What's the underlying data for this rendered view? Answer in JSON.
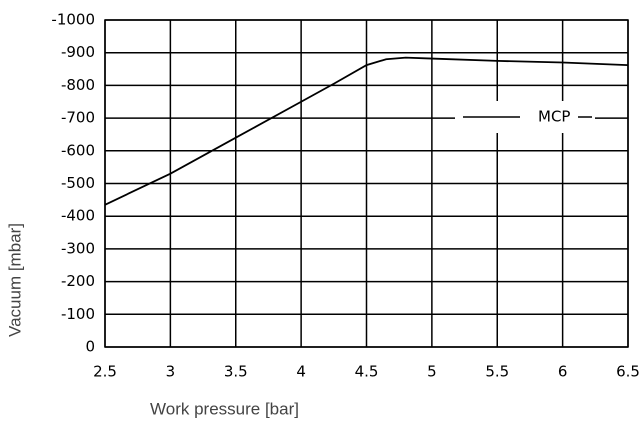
{
  "chart_data": {
    "type": "line",
    "xlabel": "Work pressure [bar]",
    "ylabel": "Vacuum [mbar]",
    "x": [
      2.5,
      3,
      3.5,
      4,
      4.25,
      4.5,
      4.65,
      4.8,
      5,
      5.5,
      6,
      6.5
    ],
    "series": [
      {
        "name": "MCP",
        "color": "#000000",
        "values": [
          -435,
          -530,
          -640,
          -750,
          -805,
          -862,
          -880,
          -885,
          -882,
          -875,
          -870,
          -862
        ]
      }
    ],
    "xlim": [
      2.5,
      6.5
    ],
    "xticks": [
      2.5,
      3,
      3.5,
      4,
      4.5,
      5,
      5.5,
      6,
      6.5
    ],
    "ylim": [
      0,
      -1000
    ],
    "yticks": [
      0,
      -100,
      -200,
      -300,
      -400,
      -500,
      -600,
      -700,
      -800,
      -900,
      -1000
    ],
    "grid": true,
    "legend": "right"
  }
}
